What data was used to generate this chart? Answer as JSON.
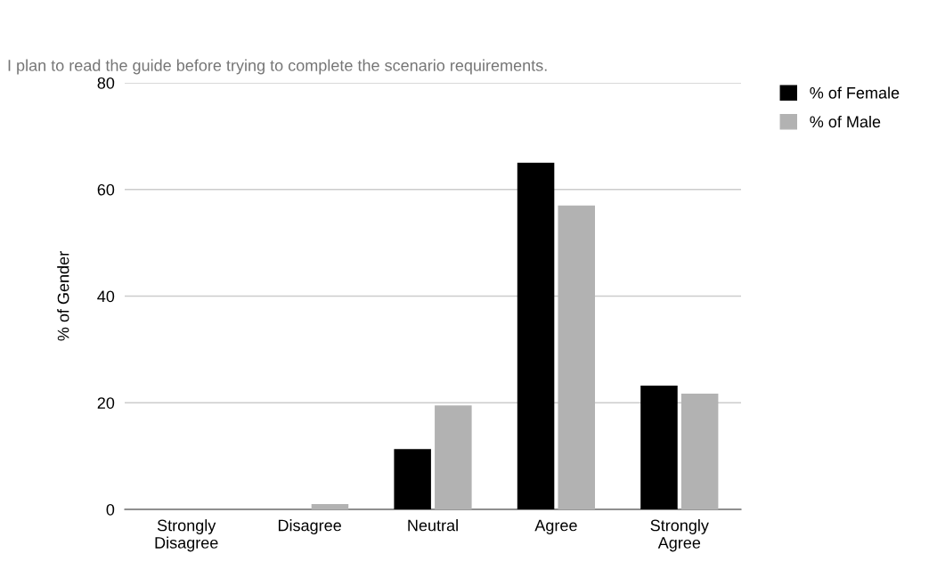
{
  "chart_data": {
    "type": "bar",
    "title": "I plan to read the guide before trying to complete the scenario requirements.",
    "ylabel": "% of Gender",
    "categories": [
      "Strongly\nDisagree",
      "Disagree",
      "Neutral",
      "Agree",
      "Strongly\nAgree"
    ],
    "series": [
      {
        "name": "% of Female",
        "color": "#000000",
        "values": [
          0,
          0,
          11.3,
          65,
          23.2
        ]
      },
      {
        "name": "% of Male",
        "color": "#b2b2b2",
        "values": [
          0,
          1,
          19.5,
          57,
          21.7
        ]
      }
    ],
    "ylim": [
      0,
      80
    ],
    "yticks": [
      0,
      20,
      40,
      60,
      80
    ],
    "grid": "y",
    "legend": "top right"
  }
}
